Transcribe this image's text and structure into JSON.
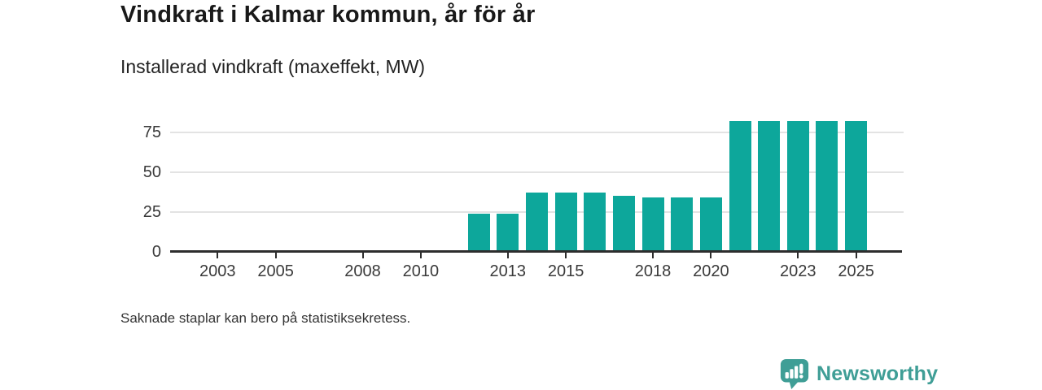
{
  "header": {
    "title": "Vindkraft i Kalmar kommun, år för år",
    "subtitle": "Installerad vindkraft (maxeffekt, MW)"
  },
  "footer": {
    "note": "Saknade staplar kan bero på statistiksekretess."
  },
  "branding": {
    "name": "Newsworthy",
    "icon": "bar-chart-speech-bubble-icon",
    "color": "#3f9e96"
  },
  "chart_data": {
    "type": "bar",
    "title": "Vindkraft i Kalmar kommun, år för år",
    "subtitle": "Installerad vindkraft (maxeffekt, MW)",
    "ylabel": "Installerad vindkraft (maxeffekt, MW)",
    "xlabel": "",
    "unit": "MW",
    "bar_color": "#0da79b",
    "grid": "horizontal",
    "legend_position": "none",
    "x_domain": [
      2002,
      2026
    ],
    "ylim": [
      0,
      87
    ],
    "y_ticks": [
      0,
      25,
      50,
      75
    ],
    "x_ticks": [
      2003,
      2005,
      2008,
      2010,
      2013,
      2015,
      2018,
      2020,
      2023,
      2025
    ],
    "categories": [
      2002,
      2003,
      2004,
      2005,
      2006,
      2007,
      2008,
      2009,
      2010,
      2011,
      2012,
      2013,
      2014,
      2015,
      2016,
      2017,
      2018,
      2019,
      2020,
      2021,
      2022,
      2023,
      2024,
      2025
    ],
    "values": [
      null,
      null,
      null,
      null,
      null,
      null,
      null,
      null,
      null,
      1,
      24,
      24,
      37,
      37,
      37,
      35,
      34,
      34,
      34,
      82,
      82,
      82,
      82,
      82
    ],
    "series": [
      {
        "name": "Installerad vindkraft (maxeffekt, MW)",
        "points": [
          {
            "year": 2011,
            "value": 1
          },
          {
            "year": 2012,
            "value": 24
          },
          {
            "year": 2013,
            "value": 24
          },
          {
            "year": 2014,
            "value": 37
          },
          {
            "year": 2015,
            "value": 37
          },
          {
            "year": 2016,
            "value": 37
          },
          {
            "year": 2017,
            "value": 35
          },
          {
            "year": 2018,
            "value": 34
          },
          {
            "year": 2019,
            "value": 34
          },
          {
            "year": 2020,
            "value": 34
          },
          {
            "year": 2021,
            "value": 82
          },
          {
            "year": 2022,
            "value": 82
          },
          {
            "year": 2023,
            "value": 82
          },
          {
            "year": 2024,
            "value": 82
          },
          {
            "year": 2025,
            "value": 82
          }
        ]
      }
    ]
  }
}
